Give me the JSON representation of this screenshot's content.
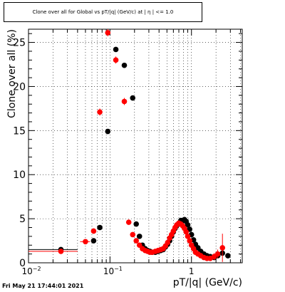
{
  "header": {
    "title": "Clone  over all for Global vs pT/|q| (GeV/c) at | η | <= 1.0"
  },
  "footer": {
    "timestamp": "Fri May 21 17:44:01 2021"
  },
  "chart_data": {
    "type": "scatter",
    "title": "Clone  over all for Global vs pT/|q| (GeV/c) at | η | <= 1.0",
    "xlabel": "pT/|q| (GeV/c)",
    "ylabel": "Clone  over all (%)",
    "xscale": "log",
    "xlim": [
      0.01,
      4.2
    ],
    "ylim": [
      0,
      26.5
    ],
    "grid": true,
    "x_tick_labels": [
      {
        "value": 0.01,
        "label": "10",
        "exp": "−2"
      },
      {
        "value": 0.1,
        "label": "10",
        "exp": "−1"
      },
      {
        "value": 1,
        "label": "1",
        "exp": ""
      }
    ],
    "y_ticks": [
      0,
      5,
      10,
      15,
      20,
      25
    ],
    "colors": {
      "series_a": "#000000",
      "series_b": "#ff0000"
    },
    "series": [
      {
        "color": "#000000",
        "x": [
          0.025,
          0.063,
          0.075,
          0.094,
          0.118,
          0.15,
          0.19,
          0.21,
          0.23,
          0.25,
          0.27,
          0.29,
          0.31,
          0.33,
          0.36,
          0.39,
          0.42,
          0.45,
          0.48,
          0.51,
          0.54,
          0.57,
          0.6,
          0.63,
          0.66,
          0.7,
          0.74,
          0.78,
          0.82,
          0.86,
          0.9,
          0.95,
          1.0,
          1.06,
          1.12,
          1.2,
          1.3,
          1.42,
          1.55,
          1.7,
          1.9,
          2.1,
          2.4,
          2.8
        ],
        "y": [
          1.5,
          2.5,
          4.0,
          14.9,
          24.2,
          22.4,
          18.7,
          4.4,
          3.0,
          2.0,
          1.6,
          1.4,
          1.3,
          1.2,
          1.2,
          1.3,
          1.4,
          1.5,
          1.8,
          2.1,
          2.5,
          3.0,
          3.5,
          3.9,
          4.2,
          4.5,
          4.8,
          4.8,
          4.9,
          4.7,
          4.3,
          3.8,
          3.2,
          2.6,
          2.1,
          1.7,
          1.3,
          1.0,
          0.8,
          0.7,
          0.6,
          0.8,
          1.1,
          0.8
        ],
        "xerr": [
          0.015,
          0.0,
          0.0,
          0.0,
          0.0,
          0.0,
          0.0,
          0.0,
          0.0,
          0.0,
          0.0,
          0.0,
          0.0,
          0.0,
          0.0,
          0.0,
          0.0,
          0.0,
          0.0,
          0.0,
          0.0,
          0.0,
          0.0,
          0.0,
          0.0,
          0.0,
          0.0,
          0.0,
          0.0,
          0.0,
          0.0,
          0.0,
          0.0,
          0.0,
          0.0,
          0.0,
          0.0,
          0.0,
          0.0,
          0.0,
          0.0,
          0.0,
          0.0,
          0.0
        ]
      },
      {
        "color": "#ff0000",
        "x": [
          0.025,
          0.05,
          0.063,
          0.075,
          0.094,
          0.118,
          0.15,
          0.17,
          0.19,
          0.21,
          0.23,
          0.25,
          0.27,
          0.29,
          0.31,
          0.33,
          0.36,
          0.39,
          0.42,
          0.45,
          0.48,
          0.51,
          0.54,
          0.57,
          0.6,
          0.63,
          0.66,
          0.7,
          0.74,
          0.78,
          0.82,
          0.86,
          0.9,
          0.95,
          1.0,
          1.06,
          1.12,
          1.2,
          1.3,
          1.42,
          1.55,
          1.7,
          1.9,
          2.1,
          2.4
        ],
        "y": [
          1.3,
          2.4,
          3.6,
          17.1,
          26.1,
          23.0,
          18.3,
          4.6,
          3.2,
          2.5,
          2.0,
          1.6,
          1.4,
          1.3,
          1.2,
          1.2,
          1.3,
          1.4,
          1.5,
          1.6,
          1.9,
          2.3,
          2.8,
          3.2,
          3.6,
          4.0,
          4.3,
          4.5,
          4.4,
          4.2,
          3.9,
          3.5,
          3.0,
          2.5,
          2.0,
          1.6,
          1.2,
          1.0,
          0.8,
          0.6,
          0.5,
          0.5,
          0.7,
          1.0,
          1.7
        ],
        "xerr": [
          0.015,
          0.007,
          0.0,
          0.0,
          0.006,
          0.0,
          0.0,
          0.0,
          0.0,
          0.0,
          0.0,
          0.0,
          0.0,
          0.0,
          0.0,
          0.0,
          0.0,
          0.0,
          0.0,
          0.0,
          0.0,
          0.0,
          0.0,
          0.0,
          0.0,
          0.0,
          0.0,
          0.0,
          0.0,
          0.0,
          0.0,
          0.0,
          0.0,
          0.0,
          0.0,
          0.0,
          0.0,
          0.0,
          0.0,
          0.0,
          0.0,
          0.0,
          0.0,
          0.0,
          0.0
        ],
        "yerr": [
          0.1,
          0.1,
          0.3,
          0.4,
          0.4,
          0.4,
          0.4,
          0.2,
          0.2,
          0.2,
          0.2,
          0.2,
          0.2,
          0.2,
          0.2,
          0.2,
          0.2,
          0.2,
          0.2,
          0.2,
          0.2,
          0.2,
          0.2,
          0.2,
          0.2,
          0.2,
          0.2,
          0.2,
          0.2,
          0.2,
          0.2,
          0.2,
          0.2,
          0.2,
          0.2,
          0.2,
          0.2,
          0.2,
          0.2,
          0.2,
          0.2,
          0.3,
          0.4,
          0.5,
          1.6
        ]
      }
    ]
  }
}
